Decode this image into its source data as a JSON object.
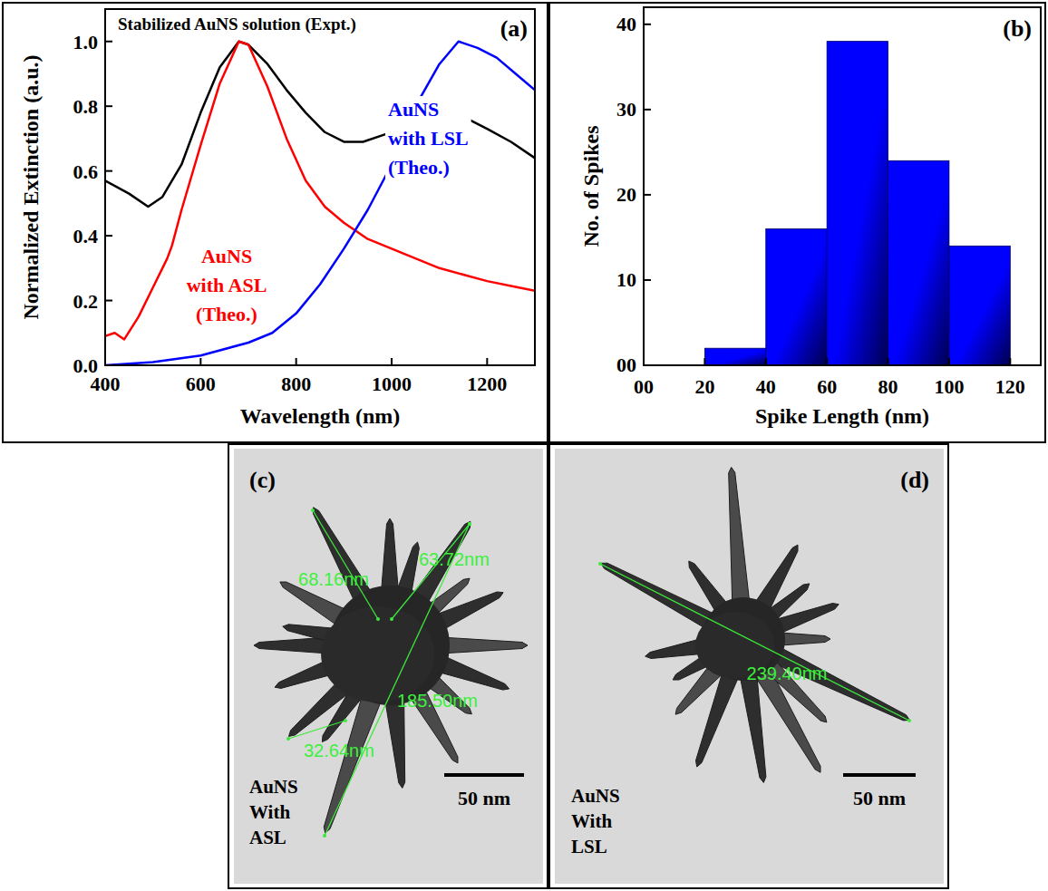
{
  "chart_data": [
    {
      "type": "line",
      "panel_label": "(a)",
      "x_label": "Wavelength (nm)",
      "y_label": "Normalized Extinction (a.u.)",
      "xlim": [
        400,
        1300
      ],
      "ylim": [
        0,
        1.1
      ],
      "xticks": [
        400,
        600,
        800,
        1000,
        1200
      ],
      "yticks": [
        {
          "value": 0,
          "label": "0.0"
        },
        0.2,
        0.4,
        0.6,
        0.8,
        {
          "value": 1,
          "label": "1.0"
        }
      ],
      "series": [
        {
          "name": "Stabilized AuNS solution (Expt.)",
          "color": "#000000",
          "x": [
            400,
            450,
            490,
            520,
            560,
            600,
            640,
            680,
            700,
            740,
            780,
            820,
            860,
            900,
            940,
            980,
            1020,
            1060,
            1100,
            1140,
            1160,
            1200,
            1250,
            1300
          ],
          "values": [
            0.57,
            0.53,
            0.49,
            0.52,
            0.62,
            0.78,
            0.92,
            1.0,
            0.99,
            0.93,
            0.85,
            0.78,
            0.72,
            0.69,
            0.69,
            0.71,
            0.73,
            0.74,
            0.75,
            0.76,
            0.76,
            0.73,
            0.69,
            0.64
          ]
        },
        {
          "name": "AuNS with ASL (Theo.)",
          "color": "#ff0000",
          "x": [
            400,
            420,
            440,
            470,
            500,
            530,
            540,
            560,
            600,
            640,
            680,
            700,
            740,
            780,
            820,
            860,
            900,
            950,
            1000,
            1050,
            1100,
            1150,
            1200,
            1250,
            1300
          ],
          "values": [
            0.09,
            0.1,
            0.08,
            0.15,
            0.24,
            0.33,
            0.37,
            0.48,
            0.68,
            0.87,
            1.0,
            0.99,
            0.86,
            0.7,
            0.57,
            0.49,
            0.44,
            0.39,
            0.36,
            0.33,
            0.3,
            0.28,
            0.26,
            0.245,
            0.23
          ]
        },
        {
          "name": "AuNS with LSL (Theo.)",
          "color": "#0000ff",
          "x": [
            400,
            500,
            600,
            700,
            750,
            800,
            850,
            900,
            950,
            1000,
            1050,
            1100,
            1140,
            1180,
            1220,
            1260,
            1300
          ],
          "values": [
            0.0,
            0.01,
            0.03,
            0.07,
            0.1,
            0.16,
            0.25,
            0.36,
            0.48,
            0.62,
            0.8,
            0.93,
            1.0,
            0.98,
            0.95,
            0.9,
            0.85
          ]
        }
      ]
    },
    {
      "type": "histogram",
      "panel_label": "(b)",
      "x_label": "Spike Length (nm)",
      "y_label": "No. of Spikes",
      "bins": [
        20,
        40,
        60,
        80,
        100,
        120
      ],
      "values": [
        2,
        16,
        38,
        24,
        14
      ],
      "color": "#0000ff",
      "xlim": [
        0,
        130
      ],
      "ylim": [
        0,
        42
      ],
      "xticks": [
        {
          "value": 0,
          "label": "00"
        },
        20,
        40,
        60,
        80,
        100,
        120
      ],
      "yticks": [
        {
          "value": 0,
          "label": "00"
        },
        10,
        20,
        30,
        40
      ]
    }
  ],
  "images": [
    {
      "panel_label": "(c)",
      "caption": "AuNS With ASL",
      "scale_bar": "50 nm",
      "measurements": [
        "68.16nm",
        "63.72nm",
        "185.50nm",
        "32.64nm"
      ]
    },
    {
      "panel_label": "(d)",
      "caption": "AuNS With LSL",
      "scale_bar": "50 nm",
      "measurements": [
        "239.40nm"
      ]
    }
  ]
}
